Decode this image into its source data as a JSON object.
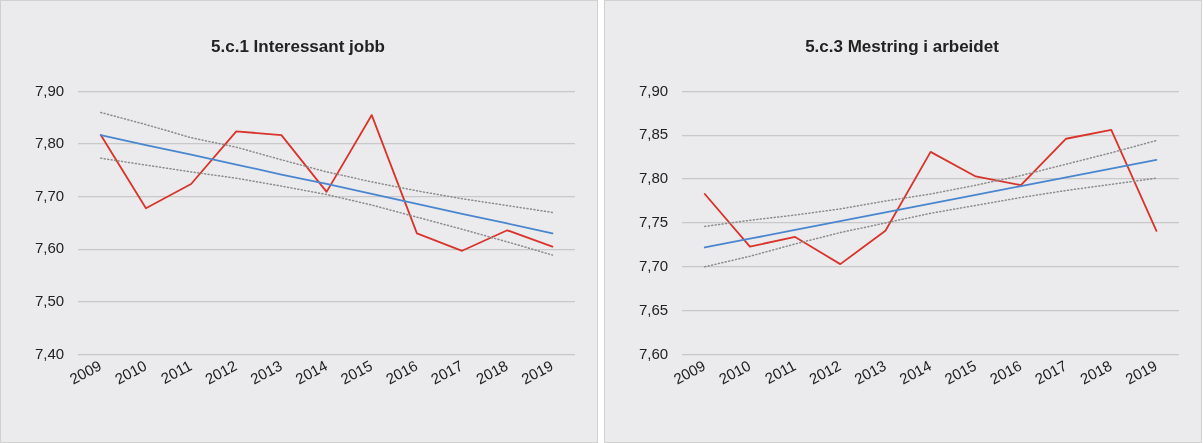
{
  "chart_data": [
    {
      "type": "line",
      "title": "5.c.1 Interessant jobb",
      "categories": [
        "2009",
        "2010",
        "2011",
        "2012",
        "2013",
        "2014",
        "2015",
        "2016",
        "2017",
        "2018",
        "2019"
      ],
      "series": [
        {
          "color": "#8c8c8c",
          "line_style": "dotted",
          "values": [
            7.86,
            7.837,
            7.812,
            7.794,
            7.77,
            7.747,
            7.728,
            7.711,
            7.696,
            7.683,
            7.67
          ]
        },
        {
          "color": "#8c8c8c",
          "line_style": "dotted",
          "values": [
            7.773,
            7.76,
            7.747,
            7.735,
            7.72,
            7.704,
            7.684,
            7.661,
            7.638,
            7.614,
            7.589
          ]
        },
        {
          "color": "#4a86d0",
          "line_style": "solid",
          "values": [
            7.817,
            7.798,
            7.78,
            7.761,
            7.742,
            7.724,
            7.705,
            7.686,
            7.667,
            7.649,
            7.63
          ]
        },
        {
          "color": "#d9342b",
          "line_style": "solid",
          "values": [
            7.817,
            7.678,
            7.724,
            7.824,
            7.817,
            7.709,
            7.855,
            7.63,
            7.597,
            7.636,
            7.605
          ]
        }
      ],
      "ylim": [
        7.4,
        7.9
      ],
      "yticks": [
        {
          "value": 7.4,
          "label": "7,40"
        },
        {
          "value": 7.5,
          "label": "7,50"
        },
        {
          "value": 7.6,
          "label": "7,60"
        },
        {
          "value": 7.7,
          "label": "7,70"
        },
        {
          "value": 7.8,
          "label": "7,80"
        },
        {
          "value": 7.9,
          "label": "7,90"
        }
      ],
      "grid": "y",
      "legend": false,
      "marker": "none"
    },
    {
      "type": "line",
      "title": "5.c.3 Mestring i arbeidet",
      "categories": [
        "2009",
        "2010",
        "2011",
        "2012",
        "2013",
        "2014",
        "2015",
        "2016",
        "2017",
        "2018",
        "2019"
      ],
      "series": [
        {
          "color": "#8c8c8c",
          "line_style": "dotted",
          "values": [
            7.746,
            7.753,
            7.759,
            7.766,
            7.775,
            7.783,
            7.793,
            7.804,
            7.817,
            7.83,
            7.844
          ]
        },
        {
          "color": "#8c8c8c",
          "line_style": "dotted",
          "values": [
            7.7,
            7.712,
            7.726,
            7.739,
            7.75,
            7.761,
            7.77,
            7.779,
            7.787,
            7.794,
            7.801
          ]
        },
        {
          "color": "#4a86d0",
          "line_style": "solid",
          "values": [
            7.722,
            7.732,
            7.742,
            7.752,
            7.762,
            7.772,
            7.782,
            7.792,
            7.802,
            7.812,
            7.822
          ]
        },
        {
          "color": "#d9342b",
          "line_style": "solid",
          "values": [
            7.783,
            7.723,
            7.734,
            7.703,
            7.741,
            7.831,
            7.803,
            7.793,
            7.846,
            7.856,
            7.741
          ]
        }
      ],
      "ylim": [
        7.6,
        7.9
      ],
      "yticks": [
        {
          "value": 7.6,
          "label": "7,60"
        },
        {
          "value": 7.65,
          "label": "7,65"
        },
        {
          "value": 7.7,
          "label": "7,70"
        },
        {
          "value": 7.75,
          "label": "7,75"
        },
        {
          "value": 7.8,
          "label": "7,80"
        },
        {
          "value": 7.85,
          "label": "7,85"
        },
        {
          "value": 7.9,
          "label": "7,90"
        }
      ],
      "grid": "y",
      "legend": false,
      "marker": "none"
    }
  ]
}
